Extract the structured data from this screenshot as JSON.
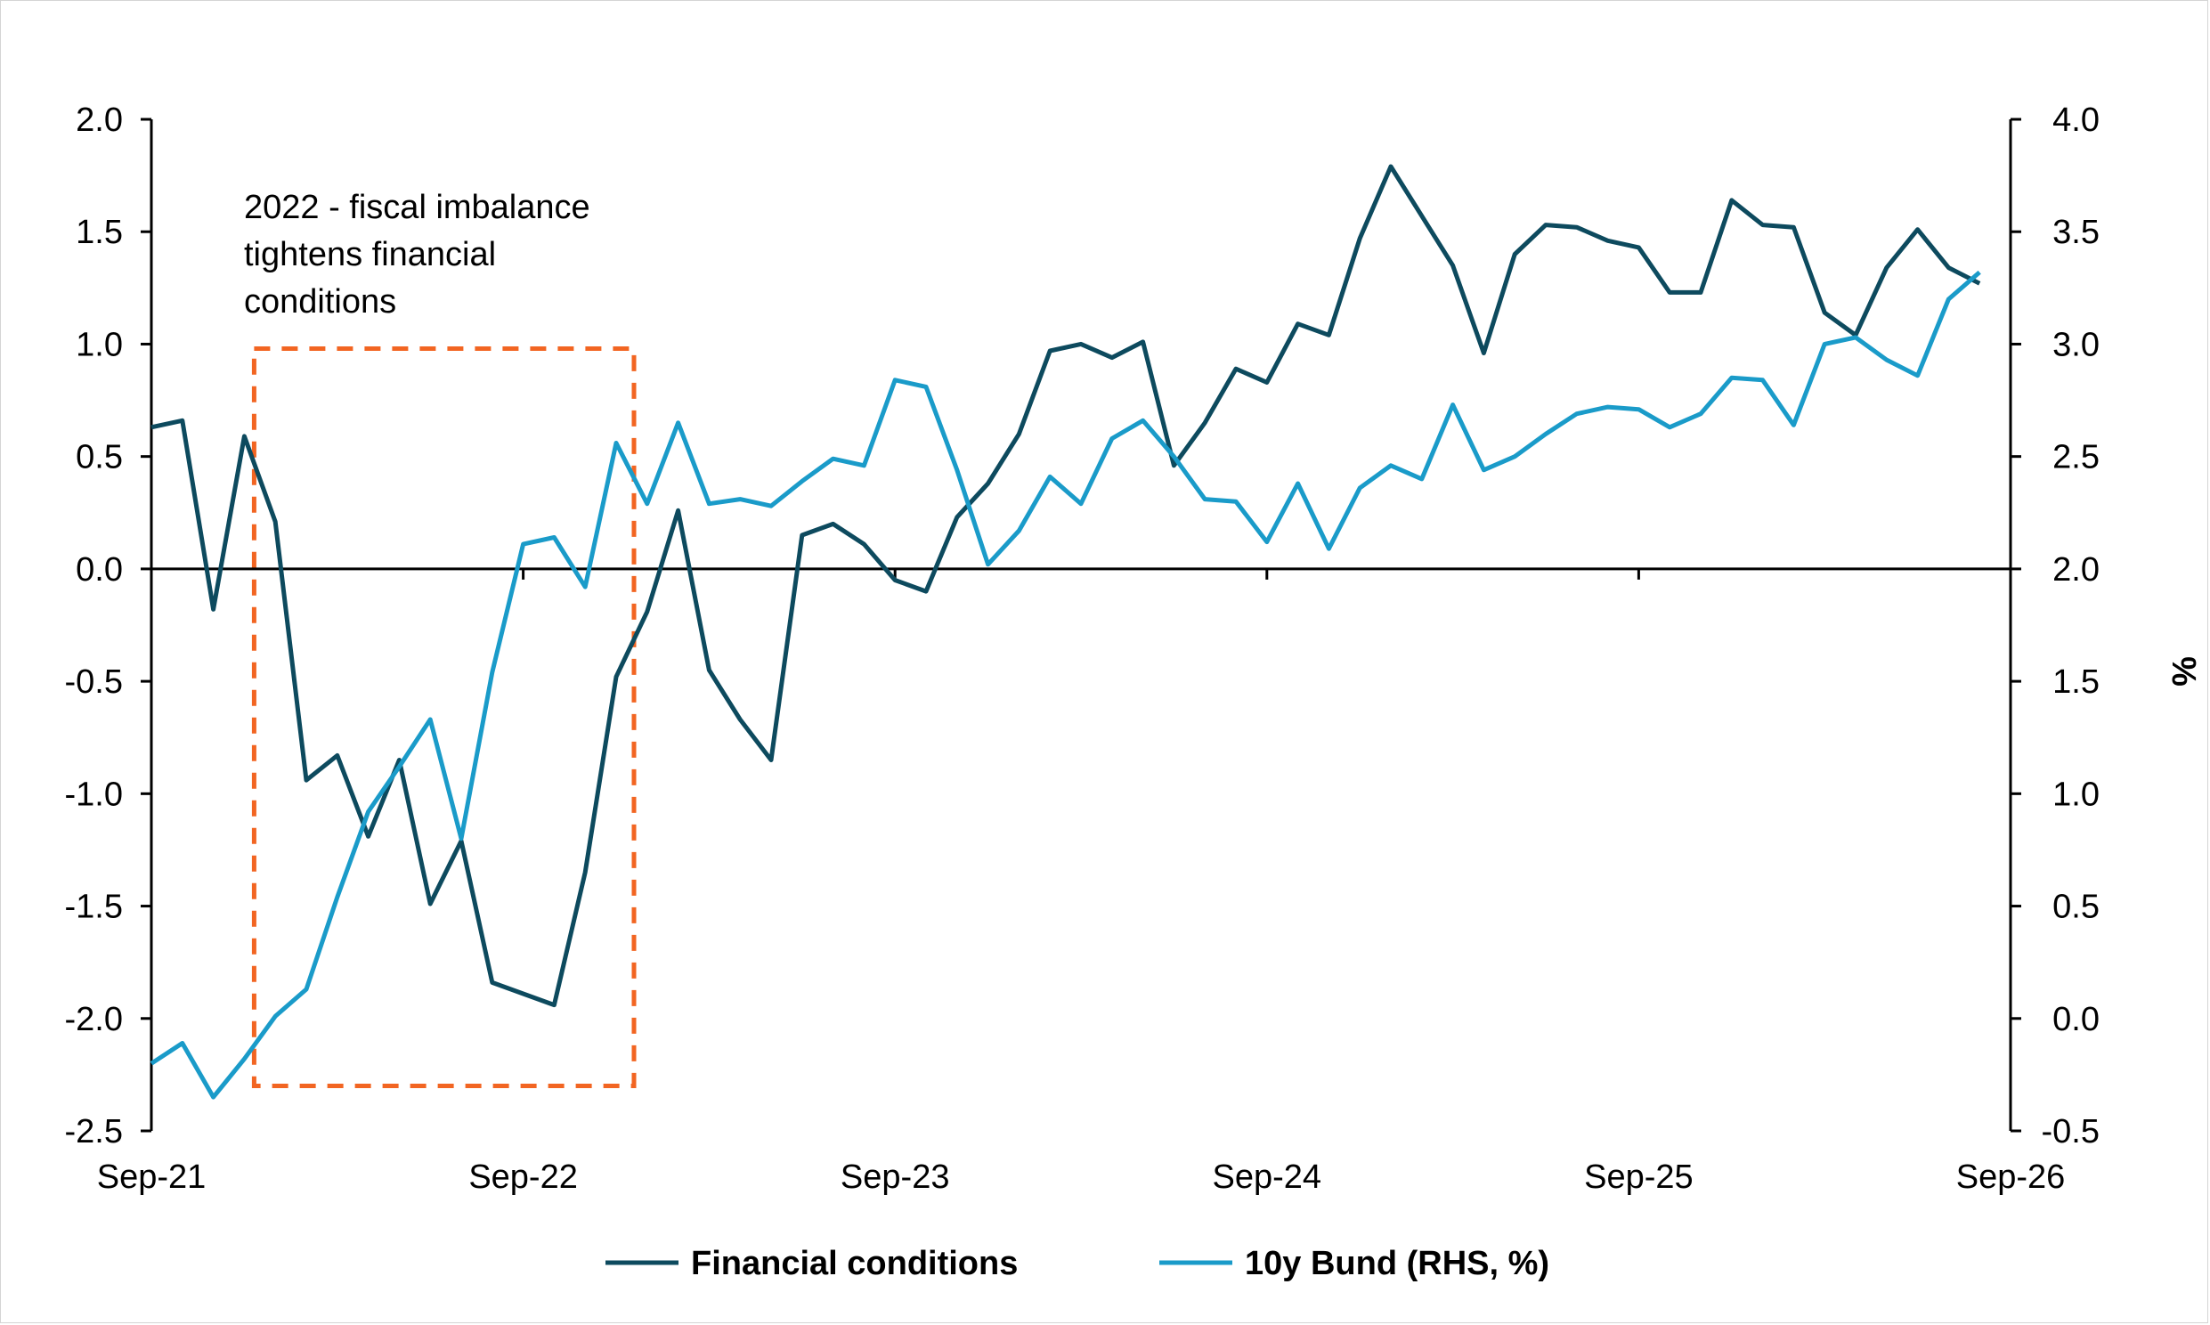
{
  "chart_data": {
    "type": "line",
    "xlabel": "",
    "ylabel_left": "",
    "ylabel_right": "%",
    "x_ticks": [
      "Sep-21",
      "Sep-22",
      "Sep-23",
      "Sep-24",
      "Sep-25",
      "Sep-26"
    ],
    "x_range": [
      "2021-09",
      "2026-09"
    ],
    "ylim_left": [
      -2.5,
      2.0
    ],
    "yticks_left": [
      "2.0",
      "1.5",
      "1.0",
      "0.5",
      "0.0",
      "-0.5",
      "-1.0",
      "-1.5",
      "-2.0",
      "-2.5"
    ],
    "ylim_right": [
      -0.5,
      4.0
    ],
    "yticks_right": [
      "4.0",
      "3.5",
      "3.0",
      "2.5",
      "2.0",
      "1.5",
      "1.0",
      "0.5",
      "0.0",
      "-0.5"
    ],
    "grid": false,
    "legend_position": "bottom-center",
    "annotation": {
      "lines": [
        "2022 - fiscal imbalance",
        "tightens financial",
        "conditions"
      ],
      "box_start": "2021-12",
      "box_end": "2022-12",
      "box_ylim_left": [
        -2.3,
        0.98
      ],
      "box_color": "#f26522"
    },
    "series": [
      {
        "name": "Financial conditions",
        "axis": "left",
        "color": "#0d4a5e",
        "x": [
          "2021-09",
          "2021-10",
          "2021-11",
          "2021-12",
          "2022-01",
          "2022-02",
          "2022-03",
          "2022-04",
          "2022-05",
          "2022-06",
          "2022-07",
          "2022-08",
          "2022-09",
          "2022-10",
          "2022-11",
          "2022-12",
          "2023-01",
          "2023-02",
          "2023-03",
          "2023-04",
          "2023-05",
          "2023-06",
          "2023-07",
          "2023-08",
          "2023-09",
          "2023-10",
          "2023-11",
          "2023-12",
          "2024-01",
          "2024-02",
          "2024-03",
          "2024-04",
          "2024-05",
          "2024-06",
          "2024-07",
          "2024-08",
          "2024-09",
          "2024-10",
          "2024-11",
          "2024-12",
          "2025-01",
          "2025-02",
          "2025-03",
          "2025-04",
          "2025-05",
          "2025-06",
          "2025-07",
          "2025-08",
          "2025-09",
          "2025-10",
          "2025-11",
          "2025-12",
          "2026-01",
          "2026-02",
          "2026-03",
          "2026-04",
          "2026-05",
          "2026-06",
          "2026-07",
          "2026-08"
        ],
        "values": [
          0.63,
          0.66,
          -0.18,
          0.59,
          0.21,
          -0.94,
          -0.83,
          -1.19,
          -0.85,
          -1.49,
          -1.21,
          -1.84,
          -1.89,
          -1.94,
          -1.35,
          -0.48,
          -0.19,
          0.26,
          -0.45,
          -0.67,
          -0.85,
          0.15,
          0.2,
          0.11,
          -0.05,
          -0.1,
          0.23,
          0.38,
          0.6,
          0.97,
          1.0,
          0.94,
          1.01,
          0.46,
          0.65,
          0.89,
          0.83,
          1.09,
          1.04,
          1.47,
          1.79,
          1.57,
          1.35,
          0.96,
          1.4,
          1.53,
          1.52,
          1.46,
          1.43,
          1.23,
          1.23,
          1.64,
          1.53,
          1.52,
          1.14,
          1.04,
          1.34,
          1.51,
          1.34,
          1.27
        ]
      },
      {
        "name": "10y Bund (RHS, %)",
        "axis": "right",
        "color": "#1a9bc9",
        "x": [
          "2021-09",
          "2021-10",
          "2021-11",
          "2021-12",
          "2022-01",
          "2022-02",
          "2022-03",
          "2022-04",
          "2022-05",
          "2022-06",
          "2022-07",
          "2022-08",
          "2022-09",
          "2022-10",
          "2022-11",
          "2022-12",
          "2023-01",
          "2023-02",
          "2023-03",
          "2023-04",
          "2023-05",
          "2023-06",
          "2023-07",
          "2023-08",
          "2023-09",
          "2023-10",
          "2023-11",
          "2023-12",
          "2024-01",
          "2024-02",
          "2024-03",
          "2024-04",
          "2024-05",
          "2024-06",
          "2024-07",
          "2024-08",
          "2024-09",
          "2024-10",
          "2024-11",
          "2024-12",
          "2025-01",
          "2025-02",
          "2025-03",
          "2025-04",
          "2025-05",
          "2025-06",
          "2025-07",
          "2025-08",
          "2025-09",
          "2025-10",
          "2025-11",
          "2025-12",
          "2026-01",
          "2026-02",
          "2026-03",
          "2026-04",
          "2026-05",
          "2026-06",
          "2026-07",
          "2026-08"
        ],
        "values": [
          -0.2,
          -0.11,
          -0.35,
          -0.18,
          0.01,
          0.13,
          0.54,
          0.92,
          1.12,
          1.33,
          0.8,
          1.54,
          2.11,
          2.14,
          1.92,
          2.56,
          2.29,
          2.65,
          2.29,
          2.31,
          2.28,
          2.39,
          2.49,
          2.46,
          2.84,
          2.81,
          2.44,
          2.02,
          2.17,
          2.41,
          2.29,
          2.58,
          2.66,
          2.5,
          2.31,
          2.3,
          2.12,
          2.38,
          2.09,
          2.36,
          2.46,
          2.4,
          2.73,
          2.44,
          2.5,
          2.6,
          2.69,
          2.72,
          2.71,
          2.63,
          2.69,
          2.85,
          2.84,
          2.64,
          3.0,
          3.03,
          2.93,
          2.86,
          3.2,
          3.32
        ]
      }
    ]
  }
}
